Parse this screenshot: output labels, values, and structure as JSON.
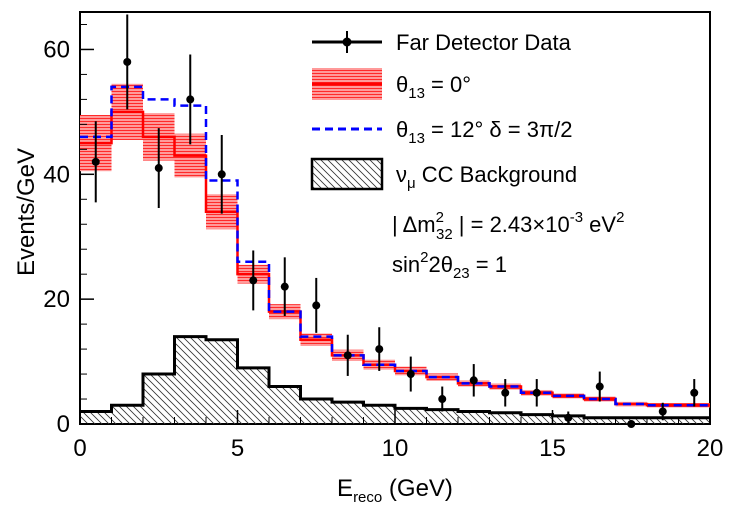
{
  "chart_data": {
    "type": "line",
    "xlabel": {
      "main": "E",
      "sub": "reco",
      "rest": " (GeV)"
    },
    "ylabel": "Events/GeV",
    "xlim": [
      0,
      20
    ],
    "ylim": [
      0,
      66
    ],
    "x_ticks": [
      0,
      5,
      10,
      15,
      20
    ],
    "y_ticks": [
      0,
      20,
      40,
      60
    ],
    "bin_edges": [
      0,
      1,
      2,
      3,
      4,
      5,
      6,
      7,
      8,
      9,
      10,
      11,
      12,
      13,
      14,
      15,
      16,
      17,
      18,
      19,
      20
    ],
    "series": [
      {
        "name": "Far Detector Data",
        "kind": "points",
        "color": "#000000",
        "x": [
          0.5,
          1.5,
          2.5,
          3.5,
          4.5,
          5.5,
          6.5,
          7.5,
          8.5,
          9.5,
          10.5,
          11.5,
          12.5,
          13.5,
          14.5,
          15.5,
          16.5,
          17.5,
          18.5,
          19.5
        ],
        "y": [
          42,
          58,
          41,
          52,
          40,
          23,
          22,
          19,
          11,
          12,
          8,
          4,
          7,
          5,
          5,
          1,
          6,
          0,
          2,
          5
        ],
        "yerr": [
          6.5,
          7.6,
          6.4,
          7.2,
          6.3,
          4.8,
          4.7,
          4.4,
          3.3,
          3.5,
          2.8,
          2.0,
          2.6,
          2.2,
          2.2,
          1.0,
          2.4,
          0,
          1.4,
          2.2
        ]
      },
      {
        "name": "θ13 = 0°",
        "kind": "step_band",
        "color": "#ff0000",
        "y": [
          45,
          50,
          46,
          43,
          34,
          24,
          18,
          13.5,
          11,
          9.5,
          8.5,
          7.5,
          6.5,
          6,
          5,
          4.5,
          4,
          3.2,
          3,
          3
        ],
        "band": [
          4.5,
          4.5,
          3.8,
          3.5,
          2.8,
          1.5,
          1.2,
          1.0,
          0.9,
          0.8,
          0.7,
          0.6,
          0.5,
          0.5,
          0.45,
          0.4,
          0.4,
          0.35,
          0.35,
          0.35
        ]
      },
      {
        "name": "θ13 = 12°  δ = 3π/2",
        "kind": "step",
        "color": "#0000ff",
        "dash": true,
        "y": [
          46,
          54,
          52,
          51,
          39,
          26,
          18,
          14,
          11,
          9.5,
          8.5,
          7.5,
          6.5,
          6,
          5,
          4.5,
          4,
          3.2,
          3,
          3
        ]
      },
      {
        "name": "νμ CC Background",
        "kind": "step_hatch",
        "color": "#000000",
        "y": [
          2,
          3,
          8,
          14,
          13.5,
          9,
          6,
          4,
          3.5,
          3,
          2.5,
          2.3,
          2,
          1.8,
          1.5,
          1.3,
          1,
          1,
          1,
          1
        ]
      }
    ],
    "legend": {
      "placement": "top-right",
      "entries": [
        {
          "main": "Far Detector Data"
        },
        {
          "main": "θ",
          "sub": "13",
          "rest": " = 0°"
        },
        {
          "main": "θ",
          "sub": "13",
          "rest": " = 12°  δ = 3π/2"
        },
        {
          "main": "ν",
          "sub": "μ",
          "rest": " CC Background"
        }
      ]
    },
    "annotations": [
      {
        "pre": "| Δm",
        "sup": "2",
        "sub": "32",
        "mid": " | = 2.43×10",
        "exp": "-3",
        "post": " eV",
        "post_sup": "2"
      },
      {
        "pre": "sin",
        "sup": "2",
        "mid": "2θ",
        "sub": "23",
        "post": " = 1"
      }
    ]
  }
}
